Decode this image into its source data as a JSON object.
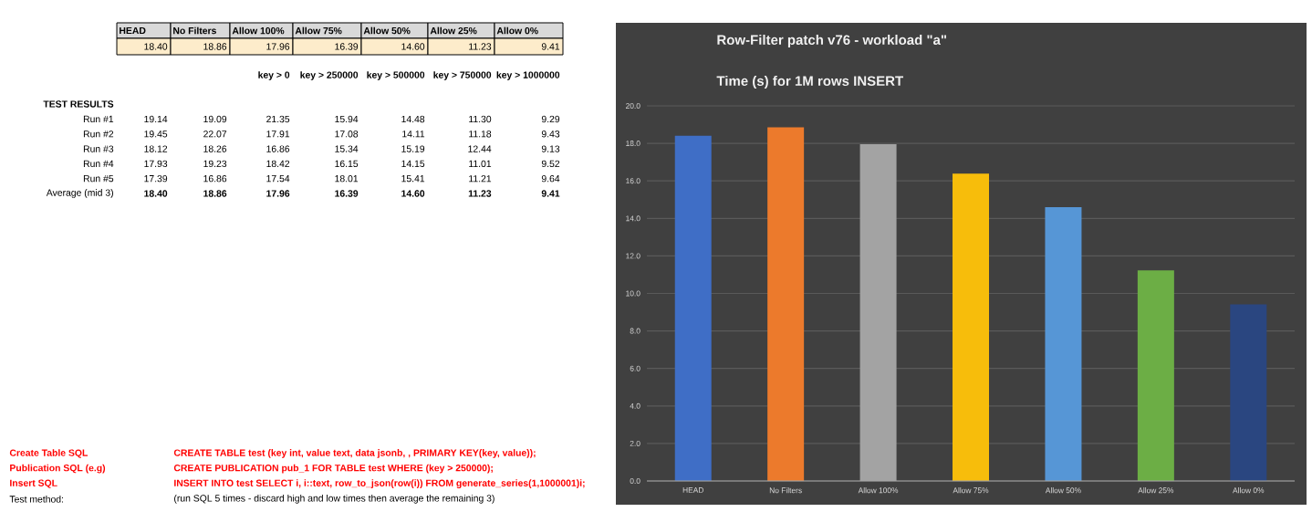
{
  "chart_data": {
    "type": "bar",
    "title": "Row-Filter patch v76 - workload \"a\"",
    "subtitle": "Time (s) for 1M rows INSERT",
    "categories": [
      "HEAD",
      "No Filters",
      "Allow 100%",
      "Allow 75%",
      "Allow 50%",
      "Allow 25%",
      "Allow 0%"
    ],
    "values": [
      18.4,
      18.86,
      17.96,
      16.39,
      14.6,
      11.23,
      9.41
    ],
    "colors": [
      "#3f6ec6",
      "#ec7a2c",
      "#a3a3a3",
      "#f7bd0b",
      "#5696d6",
      "#6cae45",
      "#2a4680"
    ],
    "ylim": [
      0,
      20
    ],
    "yticks": [
      {
        "value": 0,
        "label": "0.0"
      },
      {
        "value": 2,
        "label": "2.0"
      },
      {
        "value": 4,
        "label": "4.0"
      },
      {
        "value": 6,
        "label": "6.0"
      },
      {
        "value": 8,
        "label": "8.0"
      },
      {
        "value": 10,
        "label": "10.0"
      },
      {
        "value": 12,
        "label": "12.0"
      },
      {
        "value": 14,
        "label": "14.0"
      },
      {
        "value": 16,
        "label": "16.0"
      },
      {
        "value": 18,
        "label": "18.0"
      },
      {
        "value": 20,
        "label": "20.0"
      }
    ],
    "grid": "y",
    "annotations": [
      "key > 0",
      "key > 250000",
      "key > 500000",
      "key > 750000",
      "key > 1000000",
      "TEST RESULTS",
      "Run #1",
      "19.14",
      "19.09",
      "21.35",
      "15.94",
      "14.48",
      "11.30",
      "9.29",
      "Run #2",
      "19.45",
      "22.07",
      "17.91",
      "17.08",
      "14.11",
      "11.18",
      "9.43",
      "Run #3",
      "18.12",
      "18.26",
      "16.86",
      "15.34",
      "15.19",
      "12.44",
      "9.13",
      "Run #4",
      "17.93",
      "19.23",
      "18.42",
      "16.15",
      "14.15",
      "11.01",
      "9.52",
      "Run #5",
      "17.39",
      "16.86",
      "17.54",
      "18.01",
      "15.41",
      "11.21",
      "9.64",
      "Average (mid 3)",
      "18.40",
      "18.86",
      "17.96",
      "16.39",
      "14.60",
      "11.23",
      "9.41",
      "Create Table SQL",
      "CREATE TABLE test (key int, value text, data jsonb, , PRIMARY KEY(key, value));",
      "Publication SQL (e.g)",
      "CREATE PUBLICATION pub_1 FOR TABLE test WHERE (key > 250000);",
      "Insert SQL",
      "INSERT INTO test SELECT i, i::text, row_to_json(row(i)) FROM generate_series(1,1000001)i;",
      "Test method:",
      "(run SQL 5 times - discard high and low times then average the remaining 3)",
      "18.40",
      "18.86",
      "17.96",
      "16.39",
      "14.60",
      "11.23",
      "9.41"
    ]
  }
}
